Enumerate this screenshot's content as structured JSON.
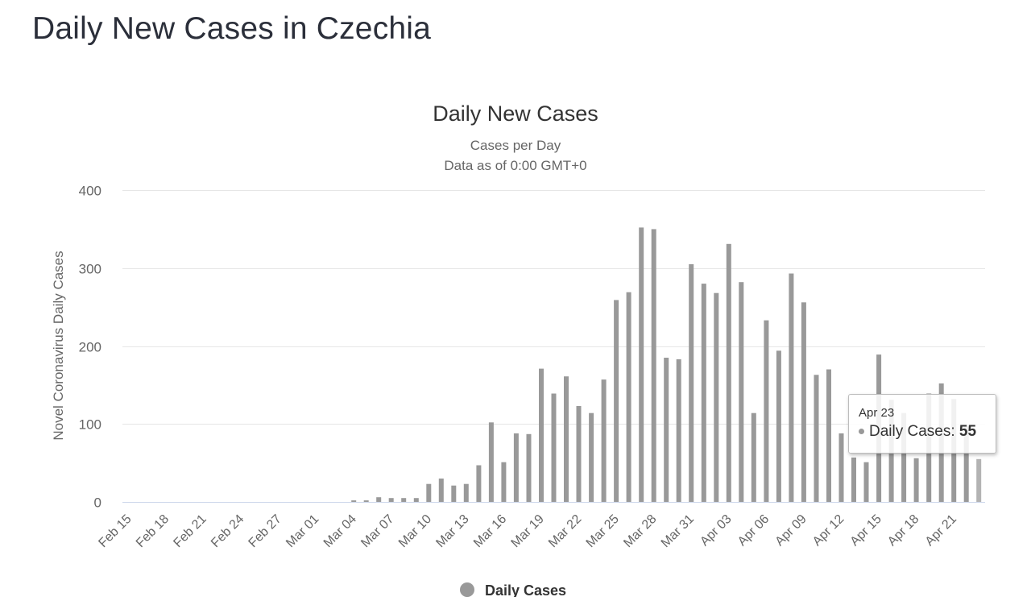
{
  "page": {
    "title": "Daily New Cases in Czechia"
  },
  "tooltip": {
    "date": "Apr 23",
    "label": "Daily Cases: ",
    "value": "55"
  },
  "legend": {
    "label": "Daily Cases"
  },
  "colors": {
    "bar": "#999999",
    "grid": "#e6e6e6",
    "axis": "#ccd6eb",
    "text": "#666666"
  },
  "chart_data": {
    "type": "bar",
    "title": "Daily New Cases",
    "subtitle_lines": [
      "Cases per Day",
      "Data as of 0:00 GMT+0"
    ],
    "ylabel": "Novel Coronavirus Daily Cases",
    "xlabel": "",
    "ylim": [
      0,
      400
    ],
    "yticks": [
      0,
      100,
      200,
      300,
      400
    ],
    "xtick_labels": [
      "Feb 15",
      "Feb 18",
      "Feb 21",
      "Feb 24",
      "Feb 27",
      "Mar 01",
      "Mar 04",
      "Mar 07",
      "Mar 10",
      "Mar 13",
      "Mar 16",
      "Mar 19",
      "Mar 22",
      "Mar 25",
      "Mar 28",
      "Mar 31",
      "Apr 03",
      "Apr 06",
      "Apr 09",
      "Apr 12",
      "Apr 15",
      "Apr 18",
      "Apr 21"
    ],
    "grid": true,
    "legend_position": "bottom-center",
    "categories": [
      "Feb 15",
      "Feb 16",
      "Feb 17",
      "Feb 18",
      "Feb 19",
      "Feb 20",
      "Feb 21",
      "Feb 22",
      "Feb 23",
      "Feb 24",
      "Feb 25",
      "Feb 26",
      "Feb 27",
      "Feb 28",
      "Feb 29",
      "Mar 01",
      "Mar 02",
      "Mar 03",
      "Mar 04",
      "Mar 05",
      "Mar 06",
      "Mar 07",
      "Mar 08",
      "Mar 09",
      "Mar 10",
      "Mar 11",
      "Mar 12",
      "Mar 13",
      "Mar 14",
      "Mar 15",
      "Mar 16",
      "Mar 17",
      "Mar 18",
      "Mar 19",
      "Mar 20",
      "Mar 21",
      "Mar 22",
      "Mar 23",
      "Mar 24",
      "Mar 25",
      "Mar 26",
      "Mar 27",
      "Mar 28",
      "Mar 29",
      "Mar 30",
      "Mar 31",
      "Apr 01",
      "Apr 02",
      "Apr 03",
      "Apr 04",
      "Apr 05",
      "Apr 06",
      "Apr 07",
      "Apr 08",
      "Apr 09",
      "Apr 10",
      "Apr 11",
      "Apr 12",
      "Apr 13",
      "Apr 14",
      "Apr 15",
      "Apr 16",
      "Apr 17",
      "Apr 18",
      "Apr 19",
      "Apr 20",
      "Apr 21",
      "Apr 22",
      "Apr 23"
    ],
    "series": [
      {
        "name": "Daily Cases",
        "values": [
          0,
          0,
          0,
          0,
          0,
          0,
          0,
          0,
          0,
          0,
          0,
          0,
          0,
          0,
          0,
          0,
          0,
          0,
          2,
          2,
          6,
          5,
          5,
          5,
          23,
          30,
          21,
          23,
          47,
          102,
          51,
          88,
          87,
          171,
          139,
          161,
          123,
          114,
          157,
          259,
          269,
          352,
          350,
          185,
          183,
          305,
          280,
          268,
          331,
          282,
          114,
          233,
          194,
          293,
          256,
          163,
          170,
          88,
          57,
          51,
          189,
          131,
          114,
          56,
          139,
          152,
          132,
          97,
          55
        ]
      }
    ]
  }
}
